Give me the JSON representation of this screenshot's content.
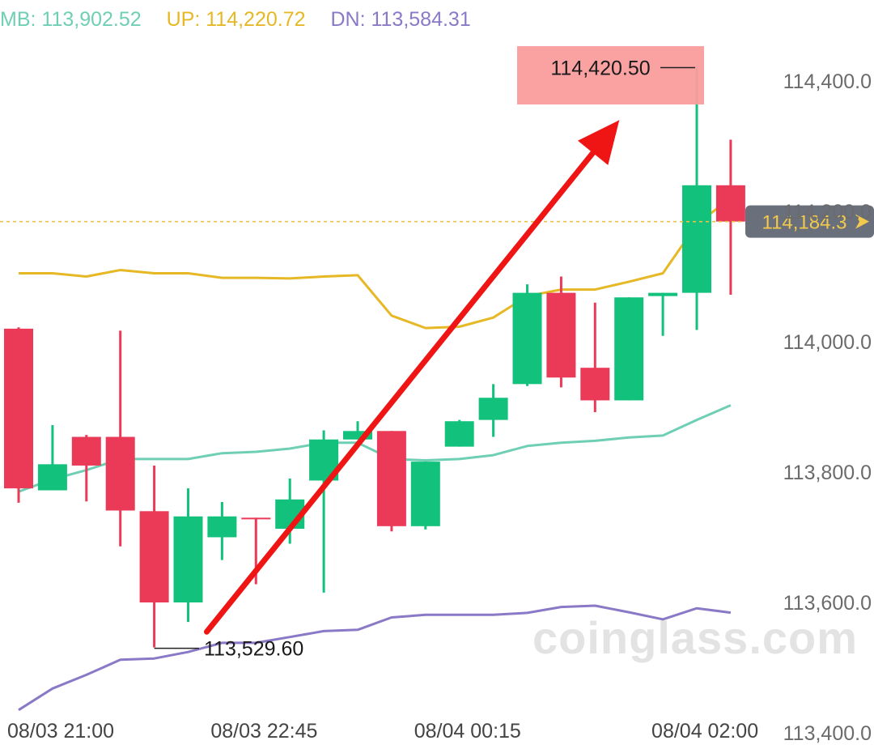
{
  "legend": {
    "mb_text": "MB: 113,902.52",
    "up_text": "UP: 114,220.72",
    "dn_text": "DN: 113,584.31",
    "mb_color": "#6fcfb4",
    "up_color": "#e7b826",
    "dn_color": "#8a79c7"
  },
  "watermark": "coinglass.com",
  "colors": {
    "up_candle": "#12c27c",
    "down_candle": "#ea3a57",
    "arrow": "#f01515",
    "high_box": "#fa9c9c",
    "price_tag_bg": "#6a6f7c",
    "price_tag_text": "#f2c94c",
    "axis_text": "#6b6b6b"
  },
  "chart_data": {
    "type": "candlestick",
    "ylim": [
      113400,
      114450
    ],
    "y_ticks": [
      {
        "value": 114400,
        "label": "114,400.0"
      },
      {
        "value": 114200,
        "label": "114,200.0"
      },
      {
        "value": 114000,
        "label": "114,000.0"
      },
      {
        "value": 113800,
        "label": "113,800.0"
      },
      {
        "value": 113600,
        "label": "113,600.0"
      },
      {
        "value": 113400,
        "label": "113,400.0"
      }
    ],
    "x_ticks": [
      {
        "index": 0,
        "label": "08/03 21:00"
      },
      {
        "index": 6,
        "label": "08/03 22:45"
      },
      {
        "index": 12,
        "label": "08/04 00:15"
      },
      {
        "index": 19,
        "label": "08/04 02:00"
      }
    ],
    "candles": [
      {
        "o": 114020,
        "h": 114022,
        "c": 113775,
        "l": 113753
      },
      {
        "o": 113772,
        "h": 113872,
        "c": 113812,
        "l": 113772
      },
      {
        "o": 113854,
        "h": 113857,
        "c": 113810,
        "l": 113755
      },
      {
        "o": 113854,
        "h": 114017,
        "c": 113741,
        "l": 113686
      },
      {
        "o": 113740,
        "h": 113810,
        "c": 113600,
        "l": 113531
      },
      {
        "o": 113600,
        "h": 113775,
        "c": 113732,
        "l": 113570
      },
      {
        "o": 113700,
        "h": 113754,
        "c": 113732,
        "l": 113665
      },
      {
        "o": 113730,
        "h": 113730,
        "c": 113728,
        "l": 113628
      },
      {
        "o": 113713,
        "h": 113790,
        "c": 113758,
        "l": 113690
      },
      {
        "o": 113787,
        "h": 113864,
        "c": 113850,
        "l": 113615
      },
      {
        "o": 113850,
        "h": 113878,
        "c": 113863,
        "l": 113850
      },
      {
        "o": 113863,
        "h": 113863,
        "c": 113717,
        "l": 113709
      },
      {
        "o": 113717,
        "h": 113816,
        "c": 113816,
        "l": 113712
      },
      {
        "o": 113839,
        "h": 113880,
        "c": 113878,
        "l": 113839
      },
      {
        "o": 113880,
        "h": 113935,
        "c": 113914,
        "l": 113854
      },
      {
        "o": 113935,
        "h": 114088,
        "c": 114075,
        "l": 113932
      },
      {
        "o": 114075,
        "h": 114100,
        "c": 113945,
        "l": 113930
      },
      {
        "o": 113960,
        "h": 114060,
        "c": 113910,
        "l": 113892
      },
      {
        "o": 113910,
        "h": 114068,
        "c": 114068,
        "l": 113910
      },
      {
        "o": 114070,
        "h": 114075,
        "c": 114075,
        "l": 114009
      },
      {
        "o": 114075,
        "h": 114420.5,
        "c": 114240,
        "l": 114018
      },
      {
        "o": 114240,
        "h": 114310,
        "c": 114184.3,
        "l": 114072
      }
    ],
    "series": [
      {
        "name": "UP",
        "values": [
          114105,
          114105,
          114100,
          114110,
          114105,
          114105,
          114098,
          114098,
          114097,
          114100,
          114102,
          114040,
          114021,
          114023,
          114037,
          114070,
          114080,
          114080,
          114092,
          114105,
          114180,
          114220.72
        ]
      },
      {
        "name": "MB",
        "values": [
          113770,
          113789,
          113803,
          113820,
          113820,
          113820,
          113829,
          113831,
          113836,
          113845,
          113845,
          113820,
          113818,
          113820,
          113826,
          113840,
          113845,
          113848,
          113853,
          113856,
          113880,
          113902.52
        ]
      },
      {
        "name": "DN",
        "values": [
          113435,
          113468,
          113489,
          113512,
          113514,
          113524,
          113538,
          113538,
          113547,
          113556,
          113558,
          113577,
          113581,
          113581,
          113581,
          113584,
          113593,
          113595,
          113585,
          113574,
          113591,
          113584.31
        ]
      }
    ],
    "high_marker": {
      "index": 20,
      "value": 114420.5,
      "label": "114,420.50"
    },
    "low_marker": {
      "index": 4,
      "value": 113529.6,
      "label": "113,529.60"
    },
    "current_price": {
      "value": 114184.3,
      "label": "114,184.3"
    },
    "arrow": {
      "from": {
        "index": 5,
        "value": 113555
      },
      "to": {
        "index": 17,
        "value": 114340
      }
    }
  }
}
